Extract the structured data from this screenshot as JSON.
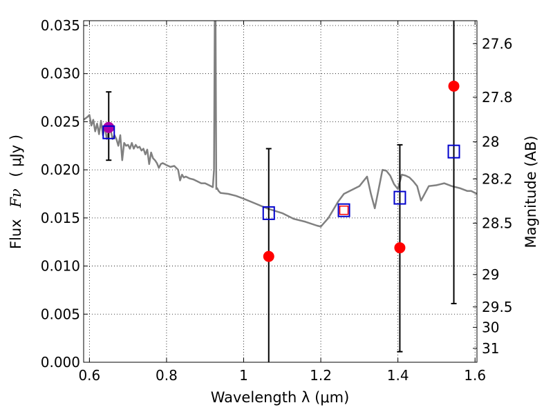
{
  "chart_data": {
    "type": "scatter",
    "xlabel": "Wavelength  λ (μm)",
    "ylabel_text": "Flux",
    "ylabel_symbol": "Fν",
    "ylabel_unit": "( μJy )",
    "y2label": "Magnitude (AB)",
    "xlim": [
      0.585,
      1.605
    ],
    "ylim": [
      0.0,
      0.0355
    ],
    "grid": true,
    "x_ticks": [
      {
        "value": 0.6,
        "label": "0.6"
      },
      {
        "value": 0.8,
        "label": "0.8"
      },
      {
        "value": 1.0,
        "label": "1"
      },
      {
        "value": 1.2,
        "label": "1.2"
      },
      {
        "value": 1.4,
        "label": "1.4"
      },
      {
        "value": 1.6,
        "label": "1.6"
      }
    ],
    "y_ticks": [
      {
        "value": 0.0,
        "label": "0.000"
      },
      {
        "value": 0.005,
        "label": "0.005"
      },
      {
        "value": 0.01,
        "label": "0.010"
      },
      {
        "value": 0.015,
        "label": "0.015"
      },
      {
        "value": 0.02,
        "label": "0.020"
      },
      {
        "value": 0.025,
        "label": "0.025"
      },
      {
        "value": 0.03,
        "label": "0.030"
      },
      {
        "value": 0.035,
        "label": "0.035"
      }
    ],
    "mag_ticks": [
      {
        "value": 27.6,
        "label": "27.6"
      },
      {
        "value": 27.8,
        "label": "27.8"
      },
      {
        "value": 28.0,
        "label": "28"
      },
      {
        "value": 28.2,
        "label": "28.2"
      },
      {
        "value": 28.5,
        "label": "28.5"
      },
      {
        "value": 29.0,
        "label": "29"
      },
      {
        "value": 29.5,
        "label": "29.5"
      },
      {
        "value": 30.0,
        "label": "30"
      },
      {
        "value": 31.0,
        "label": "31"
      }
    ],
    "model_spectrum": {
      "color": "#808080",
      "x": [
        0.585,
        0.595,
        0.6,
        0.605,
        0.61,
        0.615,
        0.62,
        0.625,
        0.63,
        0.635,
        0.64,
        0.645,
        0.65,
        0.655,
        0.66,
        0.665,
        0.67,
        0.675,
        0.68,
        0.685,
        0.69,
        0.695,
        0.7,
        0.705,
        0.71,
        0.715,
        0.72,
        0.725,
        0.73,
        0.735,
        0.74,
        0.745,
        0.75,
        0.755,
        0.76,
        0.765,
        0.77,
        0.775,
        0.78,
        0.785,
        0.79,
        0.8,
        0.81,
        0.82,
        0.83,
        0.835,
        0.84,
        0.845,
        0.85,
        0.86,
        0.87,
        0.88,
        0.89,
        0.9,
        0.91,
        0.92,
        0.923,
        0.925,
        0.927,
        0.929,
        0.931,
        0.935,
        0.94,
        0.96,
        0.98,
        1.0,
        1.03,
        1.06,
        1.1,
        1.13,
        1.16,
        1.19,
        1.2,
        1.22,
        1.245,
        1.26,
        1.28,
        1.3,
        1.32,
        1.33,
        1.34,
        1.35,
        1.36,
        1.37,
        1.38,
        1.39,
        1.4,
        1.41,
        1.42,
        1.43,
        1.44,
        1.45,
        1.46,
        1.48,
        1.5,
        1.52,
        1.54,
        1.56,
        1.58,
        1.59,
        1.6,
        1.605
      ],
      "y": [
        0.0252,
        0.0255,
        0.0257,
        0.0246,
        0.0252,
        0.024,
        0.0248,
        0.0237,
        0.0251,
        0.0236,
        0.0245,
        0.0232,
        0.024,
        0.0242,
        0.0232,
        0.0236,
        0.0232,
        0.0225,
        0.0236,
        0.021,
        0.0228,
        0.0225,
        0.0226,
        0.0222,
        0.0228,
        0.0222,
        0.0226,
        0.0223,
        0.0224,
        0.022,
        0.0222,
        0.0216,
        0.0221,
        0.0206,
        0.0218,
        0.0212,
        0.021,
        0.0207,
        0.0202,
        0.0206,
        0.0207,
        0.0205,
        0.0203,
        0.0204,
        0.02,
        0.0189,
        0.0195,
        0.0192,
        0.0193,
        0.0191,
        0.019,
        0.0188,
        0.0186,
        0.0186,
        0.0184,
        0.0182,
        0.02,
        0.036,
        0.036,
        0.018,
        0.0181,
        0.0178,
        0.0176,
        0.0175,
        0.0173,
        0.017,
        0.0165,
        0.016,
        0.0155,
        0.0149,
        0.0146,
        0.0142,
        0.0141,
        0.015,
        0.0167,
        0.0175,
        0.0179,
        0.0183,
        0.0193,
        0.0175,
        0.016,
        0.018,
        0.02,
        0.0199,
        0.0194,
        0.0185,
        0.018,
        0.0195,
        0.0194,
        0.0192,
        0.0188,
        0.0183,
        0.0168,
        0.0183,
        0.0184,
        0.0186,
        0.0183,
        0.0181,
        0.0178,
        0.0178,
        0.0176,
        0.0175
      ]
    },
    "observed": {
      "color": "#ff0000",
      "points": [
        {
          "x": 0.65,
          "y": 0.0244,
          "err_low": 0.0034,
          "err_high": 0.0037
        },
        {
          "x": 1.065,
          "y": 0.011,
          "err_low": 0.011,
          "err_high": 0.0112
        },
        {
          "x": 1.26,
          "y": 0.0158,
          "err_low": 0.0,
          "err_high": 0.0
        },
        {
          "x": 1.405,
          "y": 0.0119,
          "err_low": 0.0108,
          "err_high": 0.0107
        },
        {
          "x": 1.545,
          "y": 0.0287,
          "err_low": 0.0226,
          "err_high": 0.0068
        }
      ]
    },
    "model_photometry": {
      "color": "#0000cc",
      "points": [
        {
          "x": 0.65,
          "y": 0.0239
        },
        {
          "x": 1.065,
          "y": 0.0155
        },
        {
          "x": 1.26,
          "y": 0.0158
        },
        {
          "x": 1.405,
          "y": 0.0171
        },
        {
          "x": 1.545,
          "y": 0.0219
        }
      ]
    },
    "magenta_point": {
      "x": 0.65,
      "y": 0.0244,
      "color": "#aa00aa"
    }
  }
}
